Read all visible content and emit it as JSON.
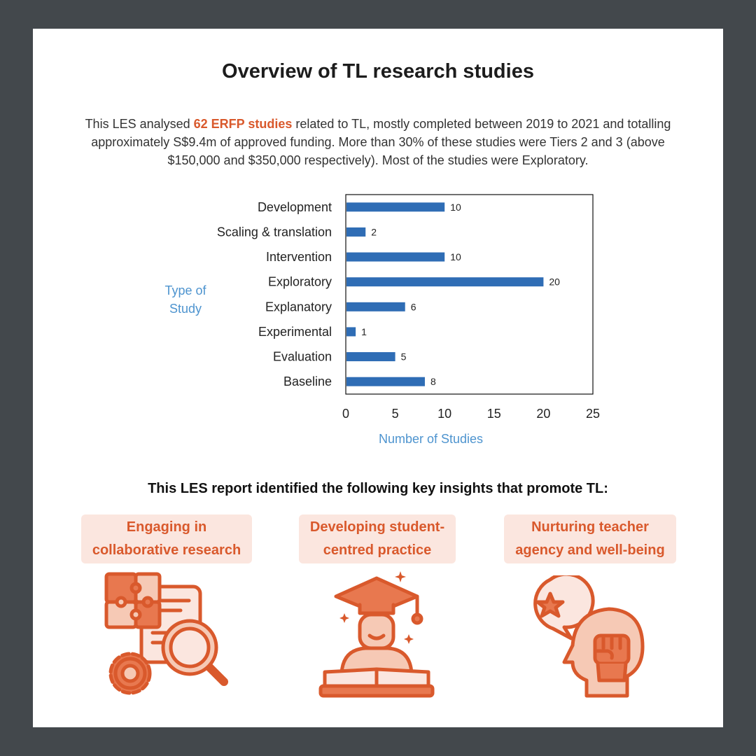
{
  "title": "Overview of TL research studies",
  "intro": {
    "pre": "This LES analysed ",
    "highlight": "62 ERFP studies",
    "post": " related to TL, mostly completed between 2019 to 2021 and totalling approximately S$9.4m of approved funding. More than 30% of these studies were Tiers 2 and 3 (above $150,000 and $350,000 respectively). Most of the studies were Exploratory."
  },
  "chart_data": {
    "type": "bar",
    "orientation": "horizontal",
    "categories": [
      "Development",
      "Scaling & translation",
      "Intervention",
      "Exploratory",
      "Explanatory",
      "Experimental",
      "Evaluation",
      "Baseline"
    ],
    "values": [
      10,
      2,
      10,
      20,
      6,
      1,
      5,
      8
    ],
    "xlabel": "Number of Studies",
    "ylabel": "Type of Study",
    "xlim": [
      0,
      25
    ],
    "xticks": [
      0,
      5,
      10,
      15,
      20,
      25
    ],
    "data_labels": true,
    "grid": false,
    "bar_color": "#2f6db5",
    "axis_label_color": "#4e94cf"
  },
  "insights": {
    "heading": "This LES report identified the following key insights that promote TL:",
    "items": [
      {
        "label_line1": "Engaging in",
        "label_line2": "collaborative research",
        "icon": "research-puzzle-magnifier-gear-icon"
      },
      {
        "label_line1": "Developing student-",
        "label_line2": "centred practice",
        "icon": "graduate-student-book-icon"
      },
      {
        "label_line1": "Nurturing teacher",
        "label_line2": "agency and well-being",
        "icon": "head-fist-star-icon"
      }
    ]
  },
  "colors": {
    "accent": "#d9592c",
    "accent_light": "#f6c9b5",
    "label_bg": "#fbe6df",
    "background": "#43484c"
  }
}
